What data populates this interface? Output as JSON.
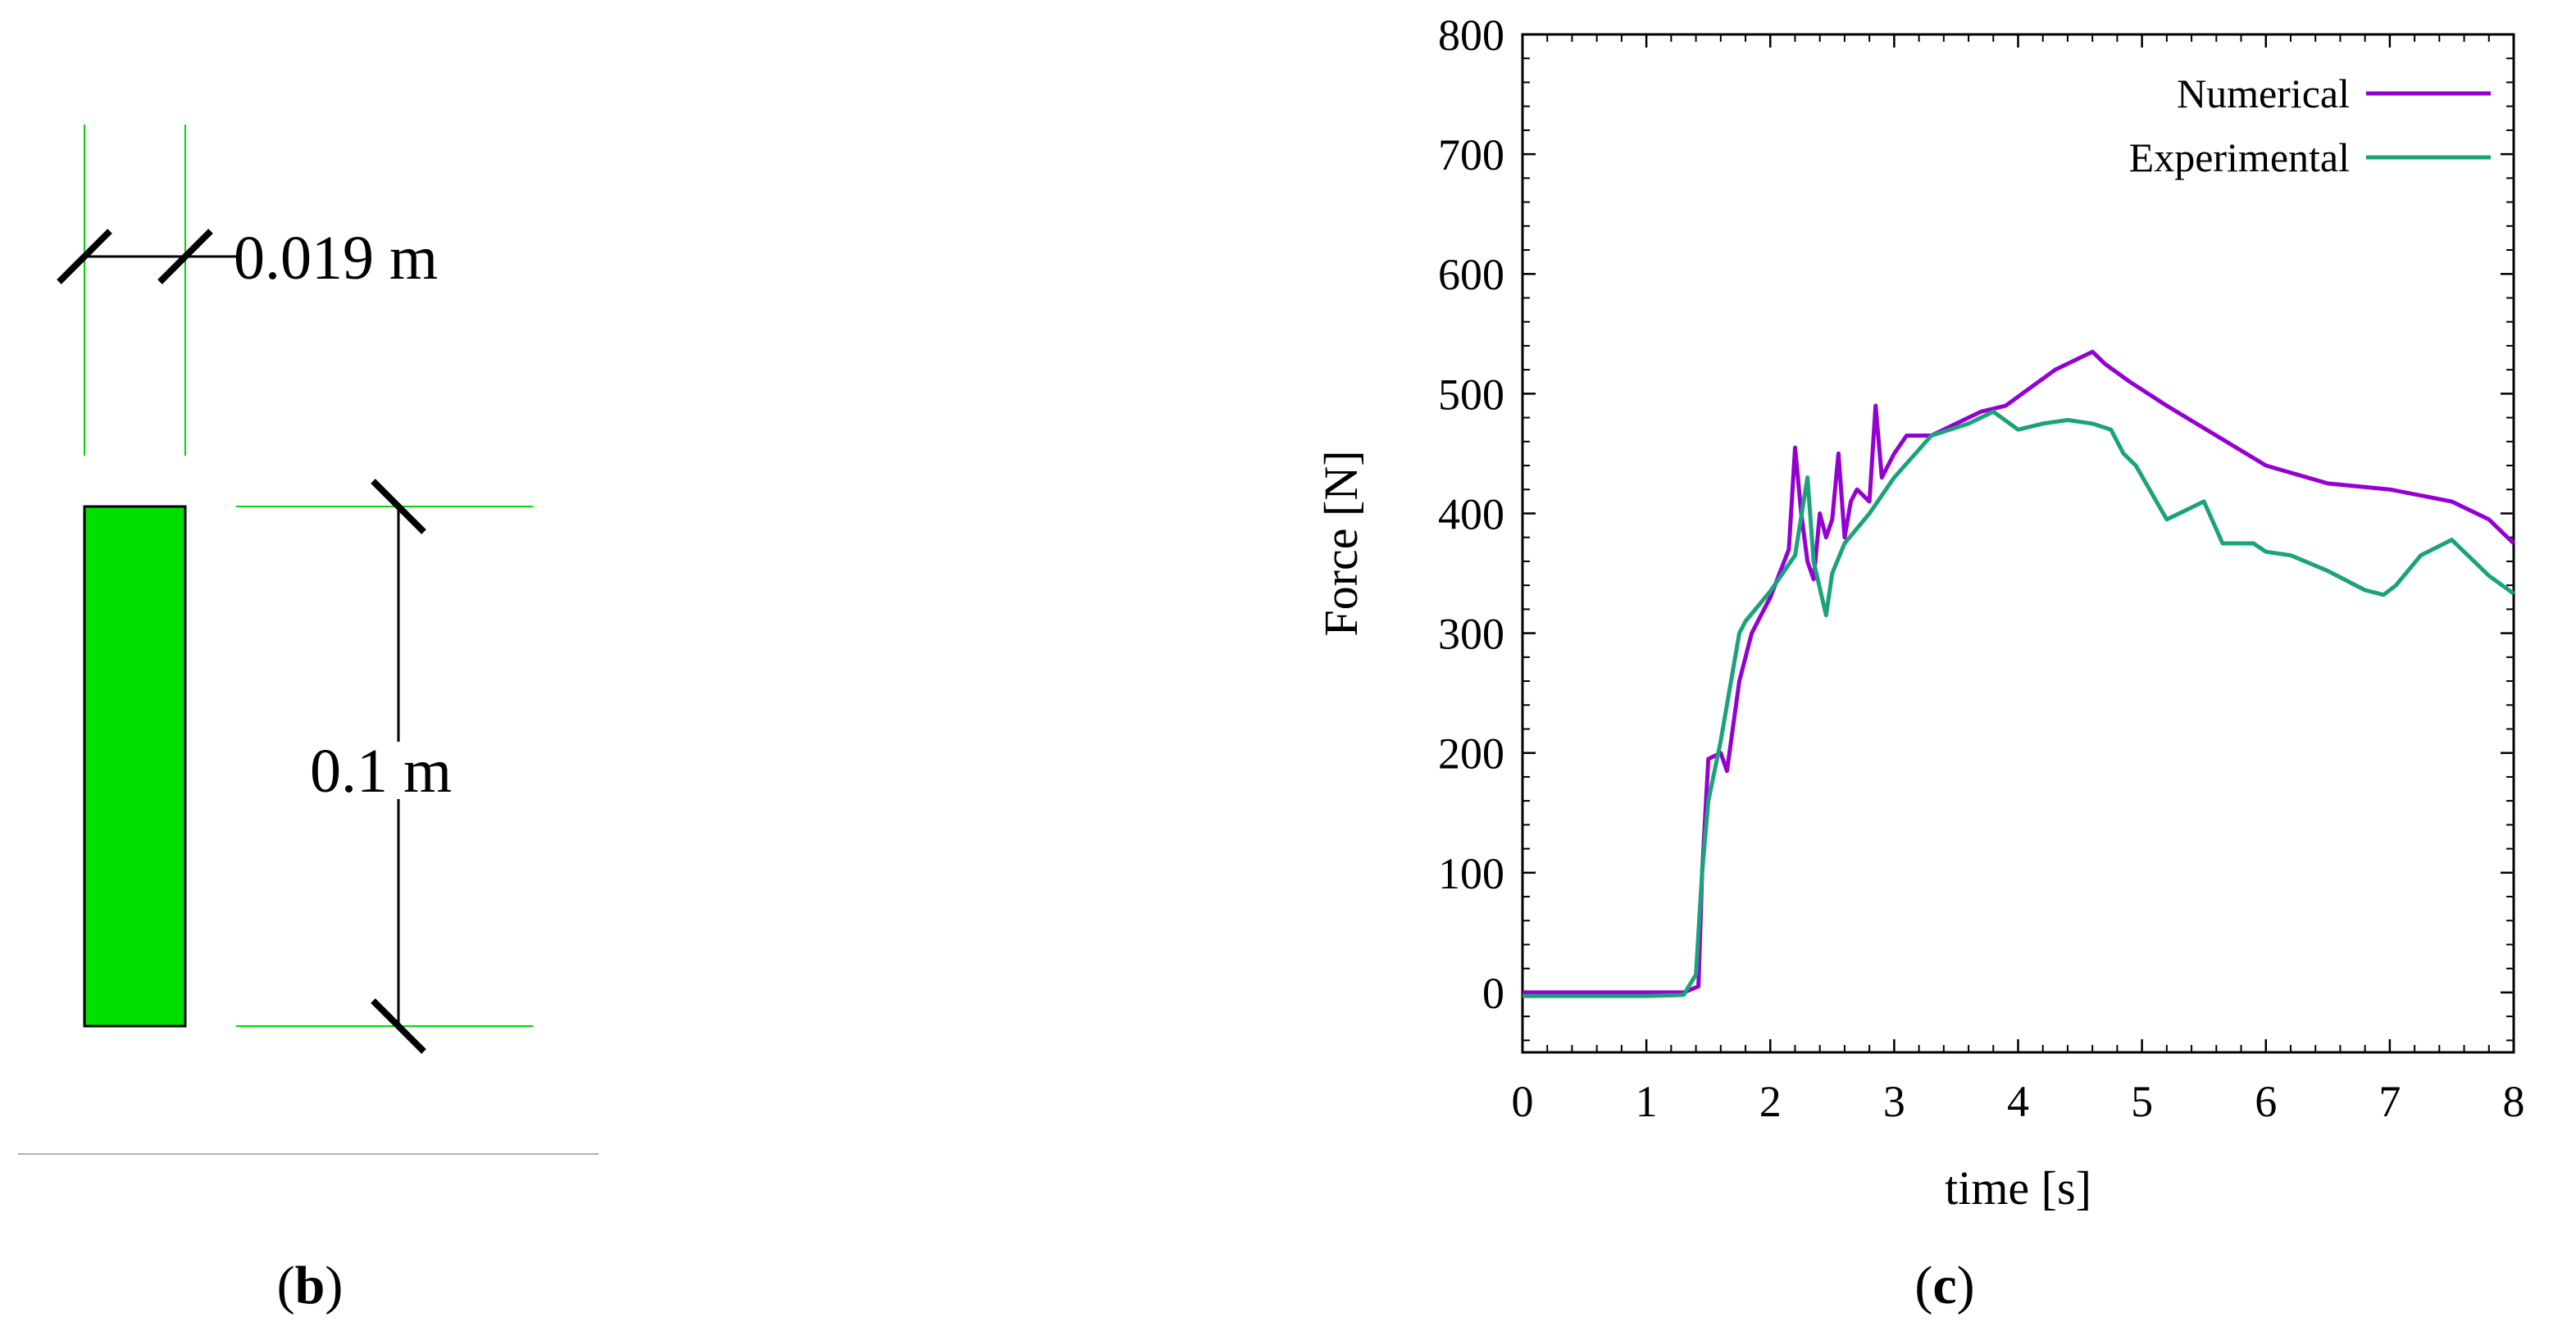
{
  "panel_b": {
    "caption": "(b)",
    "caption_letter": "b",
    "width_label": "0.019 m",
    "height_label": "0.1 m",
    "colors": {
      "block": "#00e000",
      "guide": "#00d800",
      "dim": "#000000"
    }
  },
  "panel_c": {
    "caption": "(c)",
    "caption_letter": "c"
  },
  "chart_data": {
    "type": "line",
    "title": "",
    "xlabel": "time [s]",
    "ylabel": "Force [N]",
    "xlim": [
      0,
      8
    ],
    "ylim": [
      -50,
      800
    ],
    "xticks": [
      0,
      1,
      2,
      3,
      4,
      5,
      6,
      7,
      8
    ],
    "yticks": [
      0,
      100,
      200,
      300,
      400,
      500,
      600,
      700,
      800
    ],
    "grid": false,
    "legend_position": "top-right",
    "series": [
      {
        "name": "Numerical",
        "color": "#9400d3",
        "x": [
          0,
          1.0,
          1.3,
          1.42,
          1.45,
          1.5,
          1.6,
          1.65,
          1.75,
          1.85,
          2.0,
          2.15,
          2.2,
          2.25,
          2.3,
          2.35,
          2.4,
          2.45,
          2.5,
          2.55,
          2.6,
          2.65,
          2.7,
          2.8,
          2.85,
          2.9,
          3.0,
          3.1,
          3.3,
          3.5,
          3.7,
          3.9,
          4.1,
          4.3,
          4.5,
          4.6,
          4.7,
          4.9,
          5.2,
          5.6,
          6.0,
          6.5,
          7.0,
          7.5,
          7.8,
          8.0
        ],
        "y": [
          0,
          0,
          0,
          5,
          100,
          195,
          200,
          185,
          260,
          300,
          330,
          370,
          455,
          400,
          360,
          345,
          400,
          380,
          395,
          450,
          380,
          410,
          420,
          410,
          490,
          430,
          450,
          465,
          465,
          475,
          485,
          490,
          505,
          520,
          530,
          535,
          525,
          510,
          490,
          465,
          440,
          425,
          420,
          410,
          395,
          375
        ]
      },
      {
        "name": "Experimental",
        "color": "#1aa37a",
        "x": [
          0,
          1.0,
          1.3,
          1.4,
          1.45,
          1.5,
          1.6,
          1.75,
          1.8,
          2.0,
          2.2,
          2.3,
          2.35,
          2.45,
          2.5,
          2.6,
          2.8,
          3.0,
          3.3,
          3.6,
          3.8,
          4.0,
          4.2,
          4.4,
          4.6,
          4.75,
          4.85,
          4.95,
          5.2,
          5.3,
          5.5,
          5.65,
          5.8,
          5.9,
          6.0,
          6.2,
          6.5,
          6.8,
          6.95,
          7.05,
          7.25,
          7.5,
          7.8,
          8.0
        ],
        "y": [
          -3,
          -3,
          -2,
          15,
          100,
          160,
          210,
          300,
          310,
          335,
          365,
          430,
          360,
          315,
          350,
          375,
          400,
          430,
          465,
          475,
          485,
          470,
          475,
          478,
          475,
          470,
          450,
          440,
          395,
          400,
          410,
          375,
          375,
          375,
          368,
          365,
          352,
          336,
          332,
          340,
          365,
          378,
          348,
          333
        ]
      }
    ]
  }
}
